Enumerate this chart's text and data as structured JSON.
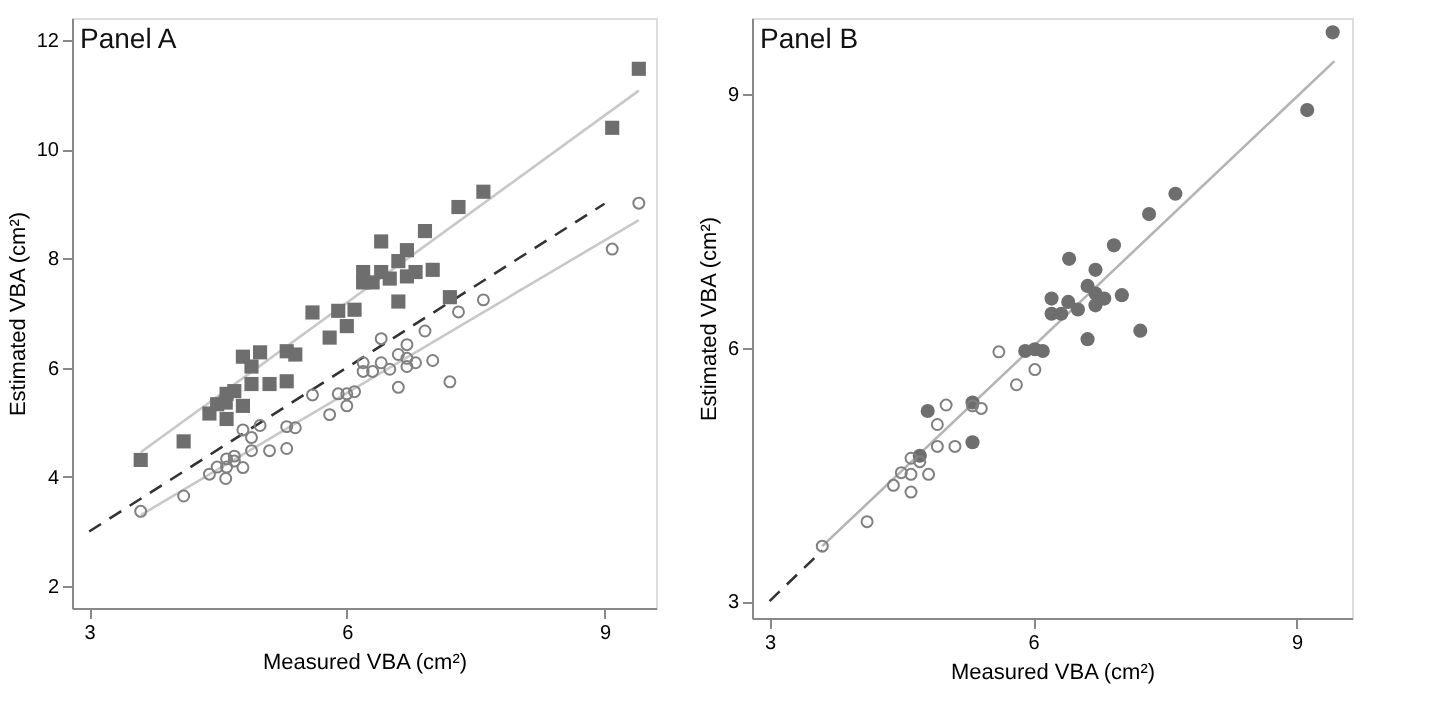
{
  "chart_data": [
    {
      "type": "scatter",
      "annotations": [
        "Panel A"
      ],
      "xlabel": "Measured VBA (cm²)",
      "ylabel": "Estimated VBA (cm²)",
      "xlim": [
        2.8,
        9.6
      ],
      "ylim": [
        1.6,
        12.4
      ],
      "xticks": [
        3,
        6,
        9
      ],
      "yticks": [
        2,
        4,
        6,
        8,
        10,
        12
      ],
      "grid": false,
      "series": [
        {
          "type": "line",
          "color": "#333333",
          "line_style": "dashed",
          "x": [
            3,
            9
          ],
          "values": [
            3,
            9
          ]
        },
        {
          "type": "line",
          "color": "#c8c8c8",
          "line_style": "solid",
          "x": [
            3.6,
            9.4
          ],
          "values": [
            4.45,
            11.07
          ]
        },
        {
          "type": "line",
          "color": "#c8c8c8",
          "line_style": "solid",
          "x": [
            3.6,
            9.4
          ],
          "values": [
            3.3,
            8.7
          ]
        },
        {
          "marker": "square",
          "color": "#6e6e6e",
          "x": [
            3.6,
            4.1,
            4.4,
            4.49,
            4.6,
            4.59,
            4.6,
            4.69,
            4.79,
            4.79,
            4.89,
            4.89,
            4.99,
            5.1,
            5.3,
            5.3,
            5.4,
            5.6,
            5.8,
            5.9,
            6.0,
            6.09,
            6.19,
            6.19,
            6.3,
            6.4,
            6.4,
            6.5,
            6.6,
            6.6,
            6.7,
            6.7,
            6.8,
            6.91,
            7.0,
            7.2,
            7.3,
            7.59,
            9.09,
            9.4
          ],
          "values": [
            4.31,
            4.65,
            5.16,
            5.33,
            5.06,
            5.36,
            5.52,
            5.57,
            5.3,
            6.2,
            6.02,
            5.7,
            6.28,
            5.7,
            5.75,
            6.3,
            6.24,
            7.01,
            6.55,
            7.04,
            6.76,
            7.06,
            7.75,
            7.56,
            7.56,
            8.31,
            7.75,
            7.63,
            7.95,
            7.21,
            8.15,
            7.67,
            7.75,
            8.5,
            7.79,
            7.29,
            8.94,
            9.22,
            10.39,
            11.47
          ]
        },
        {
          "marker": "circle",
          "color": "#808080",
          "x": [
            3.6,
            4.1,
            4.4,
            4.49,
            4.59,
            4.6,
            4.6,
            4.69,
            4.69,
            4.79,
            4.79,
            4.89,
            4.89,
            4.99,
            5.1,
            5.3,
            5.3,
            5.4,
            5.6,
            5.8,
            5.9,
            6.0,
            6.0,
            6.09,
            6.19,
            6.19,
            6.3,
            6.4,
            6.4,
            6.5,
            6.6,
            6.6,
            6.7,
            6.7,
            6.7,
            6.8,
            6.91,
            7.0,
            7.2,
            7.3,
            7.59,
            9.09,
            9.4
          ],
          "values": [
            3.37,
            3.65,
            4.05,
            4.18,
            3.97,
            4.33,
            4.18,
            4.38,
            4.29,
            4.17,
            4.86,
            4.72,
            4.48,
            4.94,
            4.48,
            4.92,
            4.52,
            4.9,
            5.5,
            5.14,
            5.52,
            5.3,
            5.52,
            5.56,
            6.09,
            5.93,
            5.93,
            6.53,
            6.09,
            5.97,
            6.24,
            5.64,
            6.42,
            6.17,
            6.02,
            6.09,
            6.67,
            6.13,
            5.74,
            7.02,
            7.24,
            8.17,
            9.01
          ]
        }
      ]
    },
    {
      "type": "scatter",
      "annotations": [
        "Panel B"
      ],
      "xlabel": "Measured VBA (cm²)",
      "ylabel": "Estimated VBA (cm²)",
      "xlim": [
        2.8,
        9.63
      ],
      "ylim": [
        2.8,
        9.9
      ],
      "xticks": [
        3,
        6,
        9
      ],
      "yticks": [
        3,
        6,
        9
      ],
      "grid": false,
      "series": [
        {
          "type": "line",
          "color": "#333333",
          "line_style": "dashed",
          "x": [
            3,
            3.6
          ],
          "values": [
            3,
            3.6
          ]
        },
        {
          "type": "line",
          "color": "#b4b4b4",
          "line_style": "solid",
          "x": [
            3.6,
            9.43
          ],
          "values": [
            3.65,
            9.39
          ]
        },
        {
          "marker": "circle",
          "color": "#6e6e6e",
          "x": [
            9.41,
            9.12,
            7.62,
            7.32,
            6.92,
            6.41,
            6.71,
            6.62,
            6.21,
            6.4,
            6.51,
            6.71,
            6.71,
            6.81,
            7.01,
            6.21,
            6.32,
            6.62,
            7.22,
            5.91,
            6.02,
            6.11,
            5.31,
            4.8,
            5.31,
            4.71
          ],
          "values": [
            9.73,
            8.81,
            7.82,
            7.58,
            7.21,
            7.05,
            6.92,
            6.73,
            6.58,
            6.54,
            6.45,
            6.64,
            6.5,
            6.58,
            6.62,
            6.4,
            6.4,
            6.1,
            6.2,
            5.96,
            5.98,
            5.96,
            5.35,
            5.25,
            4.88,
            4.72
          ]
        },
        {
          "marker": "circle",
          "color": "#808080",
          "x": [
            3.6,
            4.11,
            4.41,
            4.5,
            4.61,
            4.61,
            4.61,
            4.71,
            4.81,
            4.91,
            4.91,
            5.01,
            5.11,
            5.31,
            5.41,
            5.61,
            5.81,
            6.02
          ],
          "values": [
            3.65,
            3.94,
            4.37,
            4.52,
            4.5,
            4.29,
            4.69,
            4.65,
            4.5,
            4.83,
            5.09,
            5.32,
            4.83,
            5.31,
            5.28,
            5.95,
            5.56,
            5.74
          ]
        }
      ]
    }
  ]
}
